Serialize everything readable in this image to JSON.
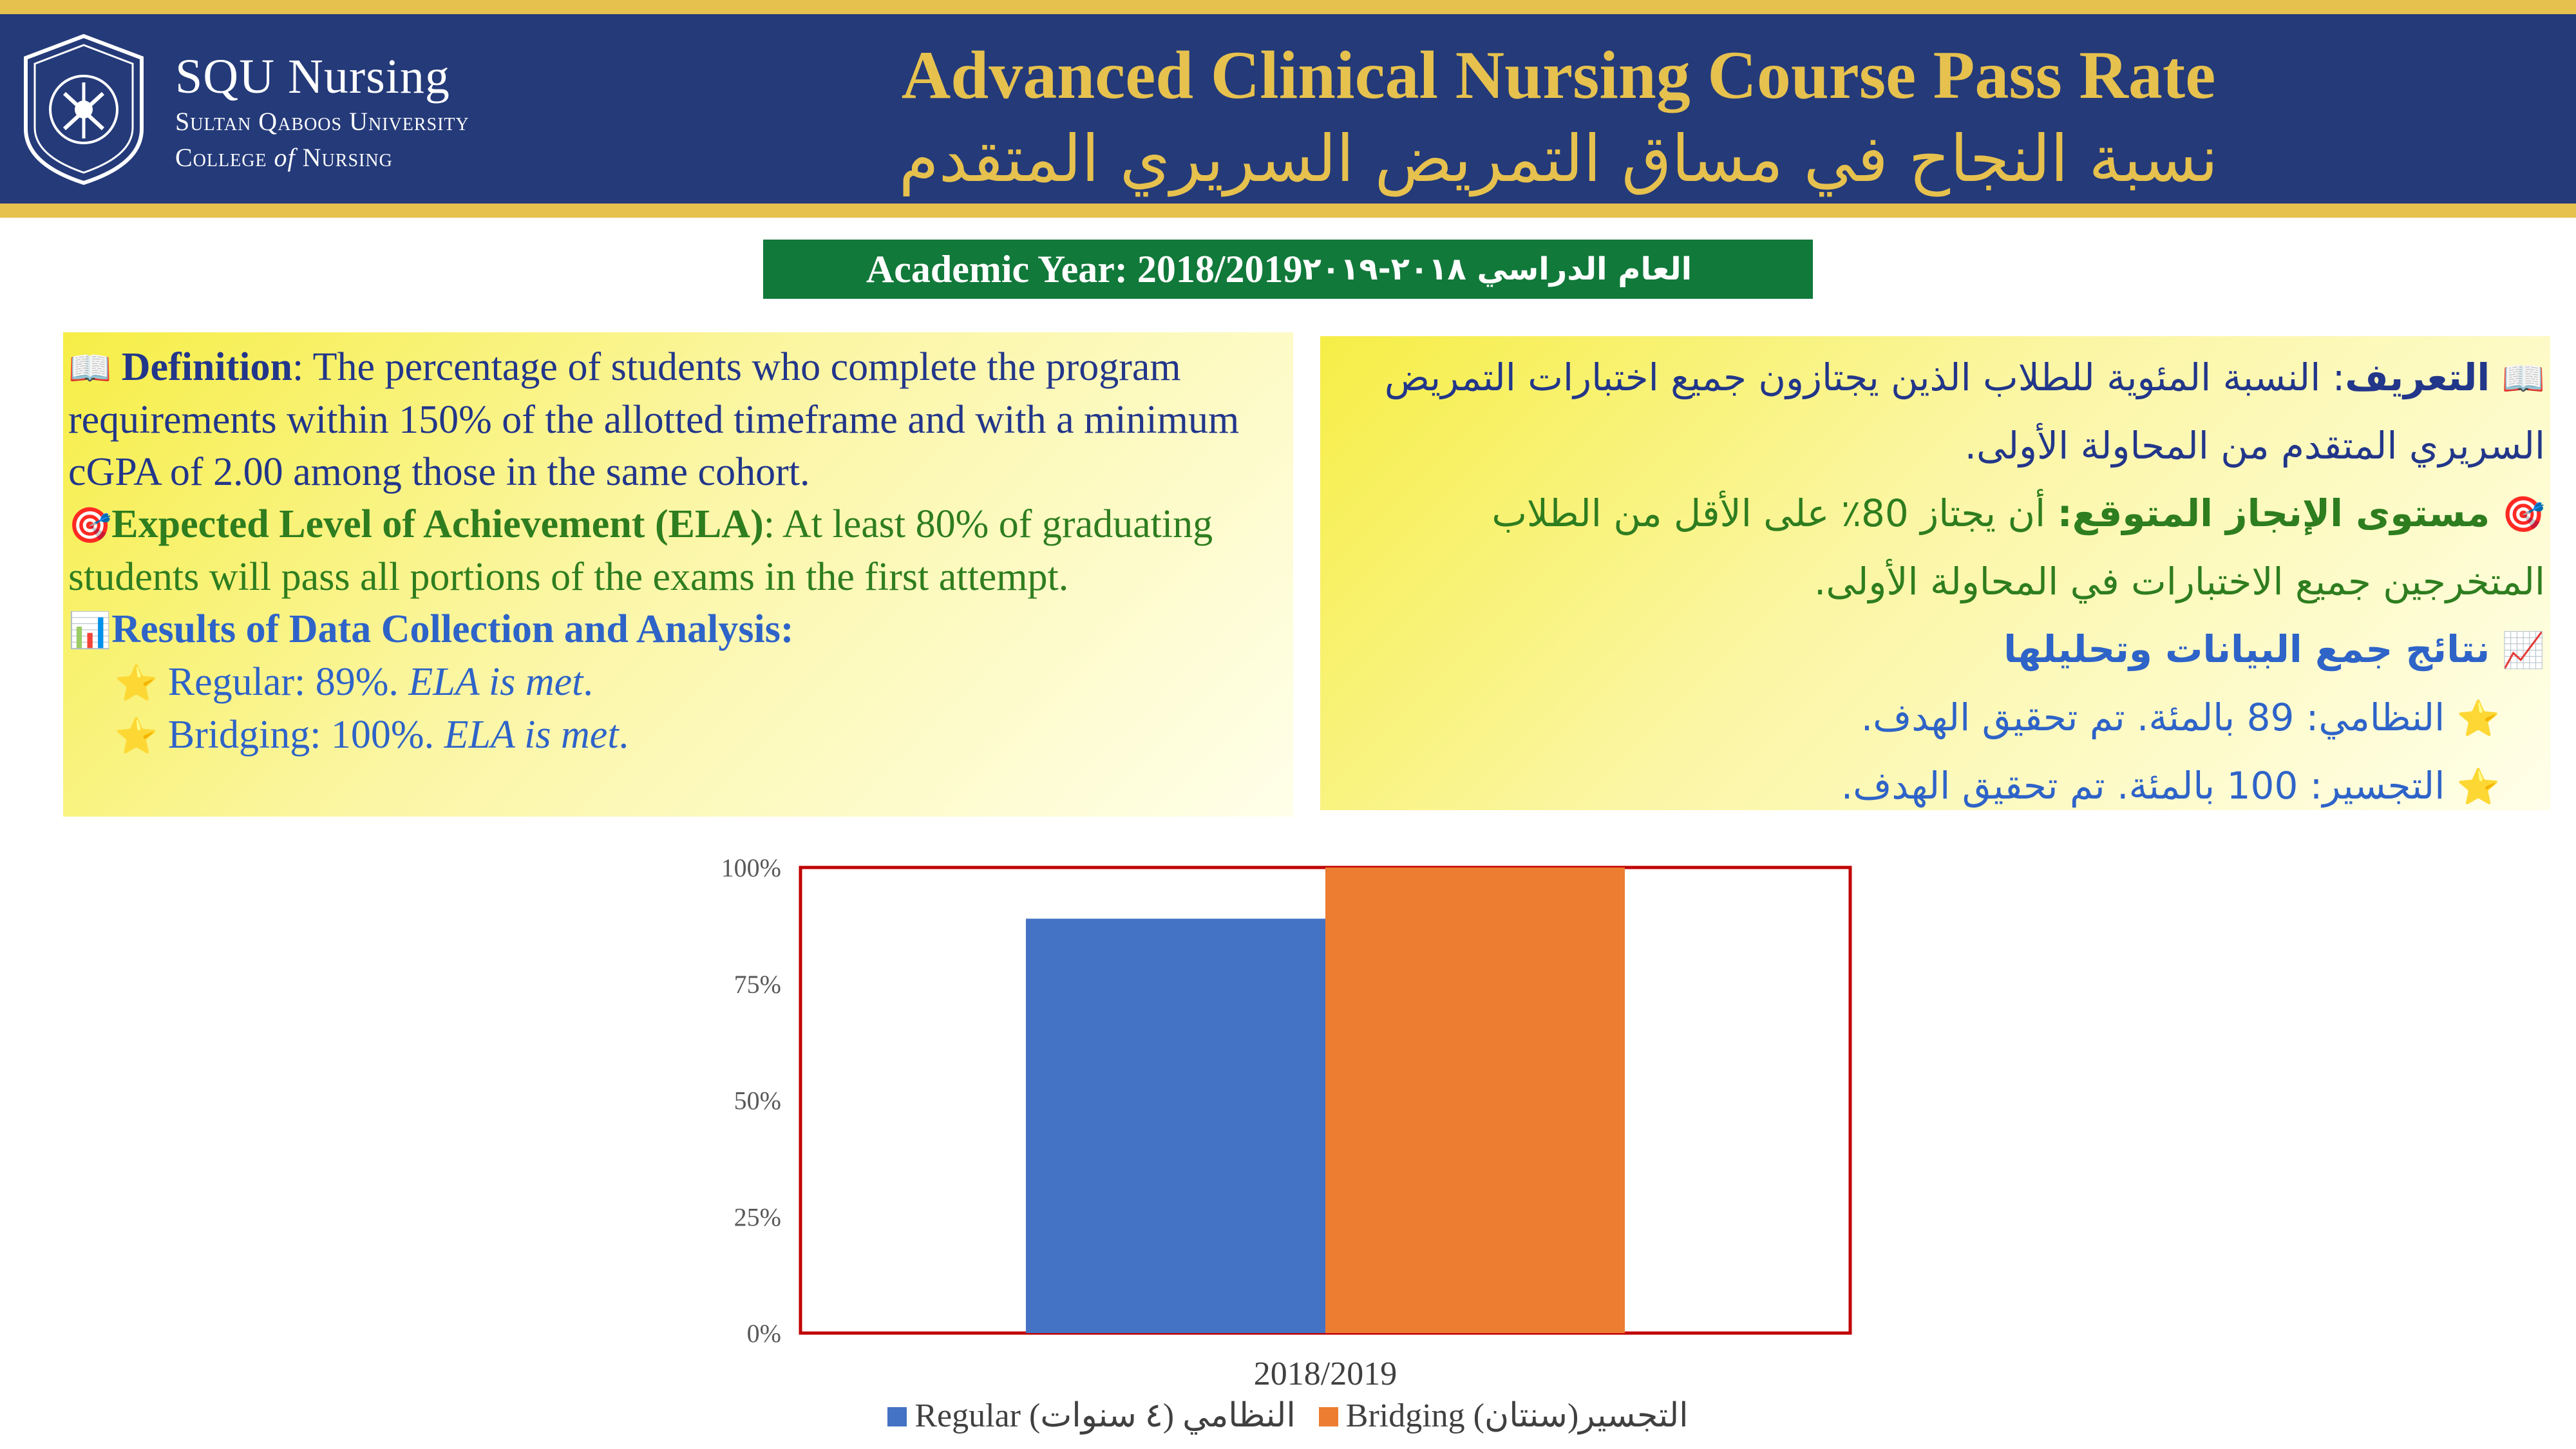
{
  "header": {
    "brand_title": "SQU Nursing",
    "brand_line1": "Sultan Qaboos University",
    "brand_line2a": "College ",
    "brand_line2b": "of",
    "brand_line2c": " Nursing",
    "title_en": "Advanced Clinical Nursing Course Pass Rate",
    "title_ar": "نسبة النجاح في مساق التمريض السريري المتقدم"
  },
  "year_banner": {
    "en": "Academic Year: 2018/2019",
    "ar": "العام الدراسي ٢٠١٨-٢٠١٩"
  },
  "panel_en": {
    "def_label": "Definition",
    "def_text": ": The percentage of students who complete the program requirements within 150% of the allotted timeframe and with a minimum cGPA of 2.00 among those in the same cohort.",
    "ela_label": "Expected Level of Achievement (ELA)",
    "ela_text": ": At least 80% of graduating students will pass all portions of the exams in the first attempt.",
    "results_label": "Results of Data Collection and Analysis:",
    "regular_text": "Regular: 89%. ",
    "regular_status": "ELA is met",
    "bridging_text": "Bridging: 100%. ",
    "bridging_status": "ELA is met"
  },
  "panel_ar": {
    "def_label": "التعريف",
    "def_text": ": النسبة المئوية للطلاب الذين يجتازون جميع اختبارات التمريض السريري المتقدم من المحاولة الأولى.",
    "ela_label": "مستوى الإنجاز المتوقع:",
    "ela_text": " أن يجتاز 80٪ على الأقل من الطلاب المتخرجين جميع الاختبارات في المحاولة الأولى.",
    "results_label": "نتائج جمع البيانات وتحليلها",
    "regular_text": "النظامي: 89 بالمئة. تم تحقيق الهدف.",
    "bridging_text": "التجسير: 100 بالمئة. تم تحقيق الهدف."
  },
  "icons": {
    "book": "open-book-icon",
    "target": "target-icon",
    "bar_chart": "bar-chart-icon",
    "trend": "chart-increasing-icon",
    "star": "star-icon"
  },
  "colors": {
    "header_bg": "#243a79",
    "gold": "#e6c14e",
    "banner_green": "#11793a",
    "regular": "#4472c4",
    "bridging": "#ed7d31",
    "plot_border": "#c00000"
  },
  "chart_data": {
    "type": "bar",
    "categories": [
      "2018/2019"
    ],
    "series": [
      {
        "name": "Regular (النظامي (٤ سنوات",
        "values": [
          89
        ]
      },
      {
        "name": "Bridging (التجسير(سنتان",
        "values": [
          100
        ]
      }
    ],
    "ylim": [
      0,
      100
    ],
    "yticks": [
      "0%",
      "25%",
      "50%",
      "75%",
      "100%"
    ],
    "ytick_values": [
      0,
      25,
      50,
      75,
      100
    ],
    "grid": false,
    "legend": "bottom"
  }
}
